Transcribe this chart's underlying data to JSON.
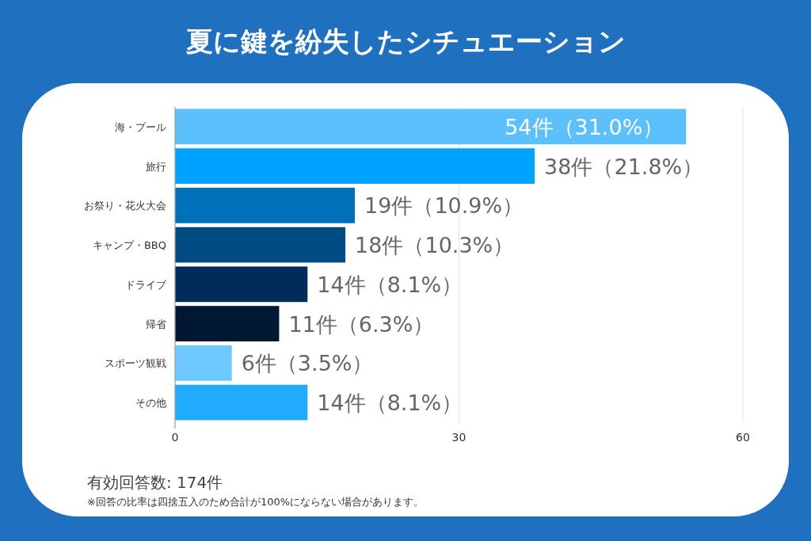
{
  "chart_data": {
    "type": "bar",
    "orientation": "horizontal",
    "title": "夏に鍵を紛失したシチュエーション",
    "categories": [
      "海・プール",
      "旅行",
      "お祭り・花火大会",
      "キャンプ・BBQ",
      "ドライブ",
      "帰省",
      "スポーツ観戦",
      "その他"
    ],
    "values": [
      54,
      38,
      19,
      18,
      14,
      11,
      6,
      14
    ],
    "value_labels": [
      "54件（31.0%）",
      "38件（21.8%）",
      "19件（10.9%）",
      "18件（10.3%）",
      "14件（8.1%）",
      "11件（6.3%）",
      "6件（3.5%）",
      "14件（8.1%）"
    ],
    "colors": [
      "#5bc0fb",
      "#00a2ff",
      "#0071b9",
      "#004b81",
      "#002c5b",
      "#011833",
      "#6ec9fe",
      "#21abfd"
    ],
    "xlim": [
      0,
      60
    ],
    "xticks": [
      0,
      30,
      60
    ],
    "grid": "x",
    "annotations": [
      "有効回答数: 174件",
      "※回答の比率は四捨五入のため合計が100%にならない場合があります。"
    ]
  }
}
